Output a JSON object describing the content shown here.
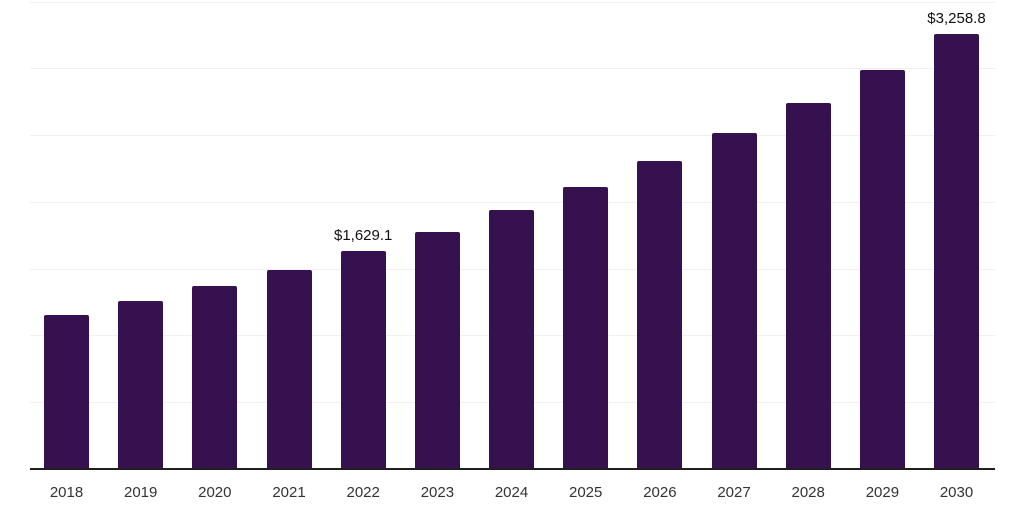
{
  "chart_data": {
    "type": "bar",
    "title": "",
    "xlabel": "",
    "ylabel": "",
    "categories": [
      "2018",
      "2019",
      "2020",
      "2021",
      "2022",
      "2023",
      "2024",
      "2025",
      "2026",
      "2027",
      "2028",
      "2029",
      "2030"
    ],
    "values": [
      1151.9,
      1256.2,
      1369.9,
      1493.9,
      1629.1,
      1776.5,
      1937.3,
      2112.6,
      2303.8,
      2512.4,
      2739.8,
      2987.8,
      3258.8
    ],
    "data_labels": [
      "",
      "",
      "",
      "",
      "$1,629.1",
      "",
      "",
      "",
      "",
      "",
      "",
      "",
      "$3,258.8"
    ],
    "ylim": [
      0,
      3500
    ],
    "gridline_step": 500,
    "grid": "horizontal-only, unlabeled",
    "legend_position": "none",
    "colors": {
      "bar": "#35124F",
      "gridline": "#f0f0f0",
      "axis_line": "#1f1f1f",
      "tick_label": "#333333",
      "value_label": "#111111",
      "background": "#ffffff"
    }
  }
}
